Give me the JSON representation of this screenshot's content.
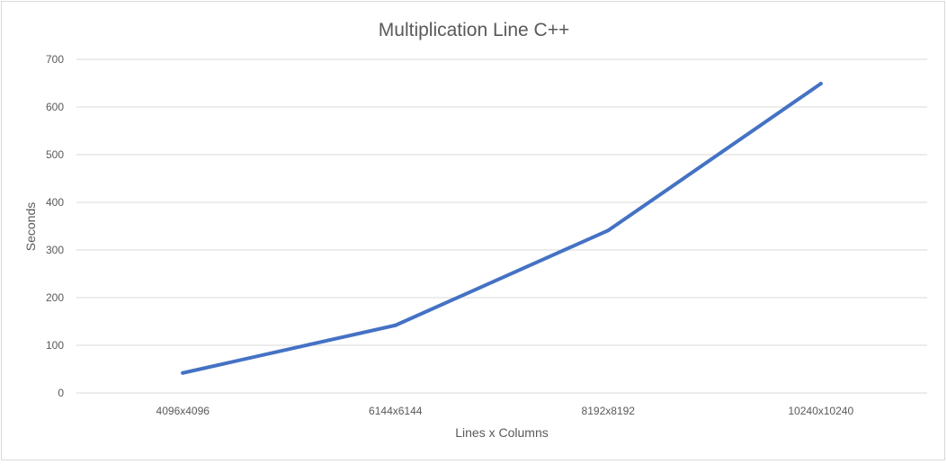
{
  "chart_data": {
    "type": "line",
    "title": "Multiplication Line C++",
    "xlabel": "Lines x Columns",
    "ylabel": "Seconds",
    "categories": [
      "4096x4096",
      "6144x6144",
      "8192x8192",
      "10240x10240"
    ],
    "series": [
      {
        "values": [
          42,
          142,
          341,
          649
        ],
        "color": "#4472c4"
      }
    ],
    "ylim": [
      0,
      700
    ],
    "yticks": [
      "0",
      "100",
      "200",
      "300",
      "400",
      "500",
      "600",
      "700"
    ],
    "grid": true,
    "legend": "none"
  }
}
